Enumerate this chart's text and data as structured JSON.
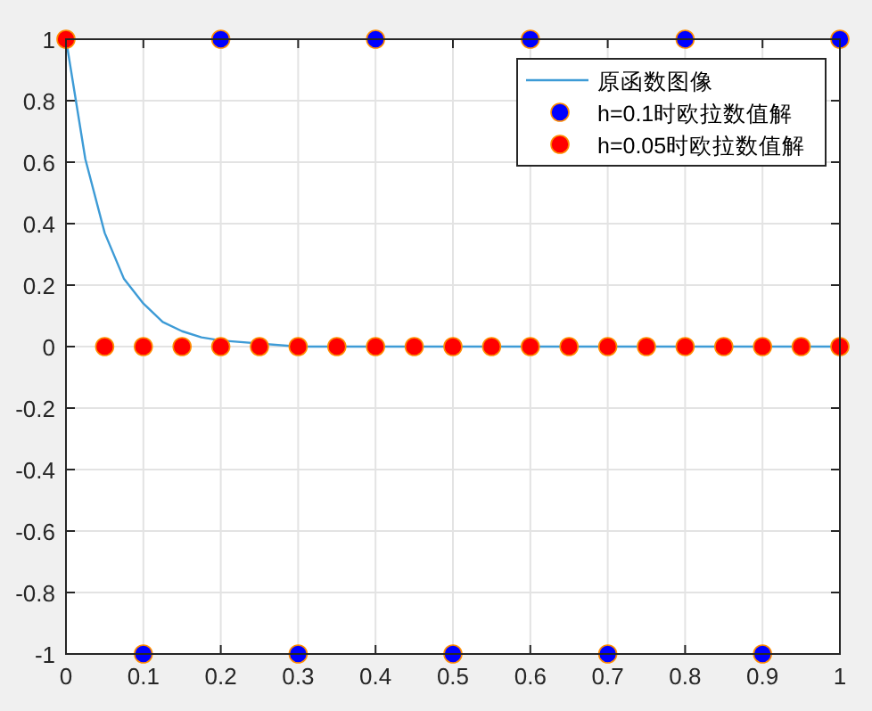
{
  "chart_data": {
    "type": "line",
    "series": [
      {
        "name": "原函数图像",
        "color": "#3d9bd6",
        "marker": "none",
        "x": [
          0,
          0.025,
          0.05,
          0.075,
          0.1,
          0.125,
          0.15,
          0.175,
          0.2,
          0.3,
          0.4,
          0.5,
          0.6,
          0.7,
          0.8,
          0.9,
          1
        ],
        "values": [
          1,
          0.61,
          0.37,
          0.22,
          0.14,
          0.08,
          0.05,
          0.03,
          0.02,
          0,
          0,
          0,
          0,
          0,
          0,
          0,
          0
        ]
      },
      {
        "name": "h=0.1时欧拉数值解",
        "type": "scatter",
        "color": "#0000ff",
        "marker": "circle",
        "x": [
          0.1,
          0.2,
          0.3,
          0.4,
          0.5,
          0.6,
          0.7,
          0.8,
          0.9,
          1
        ],
        "values": [
          -1,
          1,
          -1,
          1,
          -1,
          1,
          -1,
          1,
          -1,
          1
        ]
      },
      {
        "name": "h=0.05时欧拉数值解",
        "type": "scatter",
        "color": "#ff0000",
        "marker": "circle",
        "x": [
          0,
          0.05,
          0.1,
          0.15,
          0.2,
          0.25,
          0.3,
          0.35,
          0.4,
          0.45,
          0.5,
          0.55,
          0.6,
          0.65,
          0.7,
          0.75,
          0.8,
          0.85,
          0.9,
          0.95,
          1
        ],
        "values": [
          1,
          0,
          0,
          0,
          0,
          0,
          0,
          0,
          0,
          0,
          0,
          0,
          0,
          0,
          0,
          0,
          0,
          0,
          0,
          0,
          0
        ]
      }
    ],
    "xlim": [
      0,
      1
    ],
    "xticks": [
      0,
      0.1,
      0.2,
      0.3,
      0.4,
      0.5,
      0.6,
      0.7,
      0.8,
      0.9,
      1
    ],
    "ylim": [
      -1,
      1
    ],
    "yticks": [
      -1,
      -0.8,
      -0.6,
      -0.4,
      -0.2,
      0,
      0.2,
      0.4,
      0.6,
      0.8,
      1
    ],
    "grid": true,
    "legend": "top right"
  }
}
